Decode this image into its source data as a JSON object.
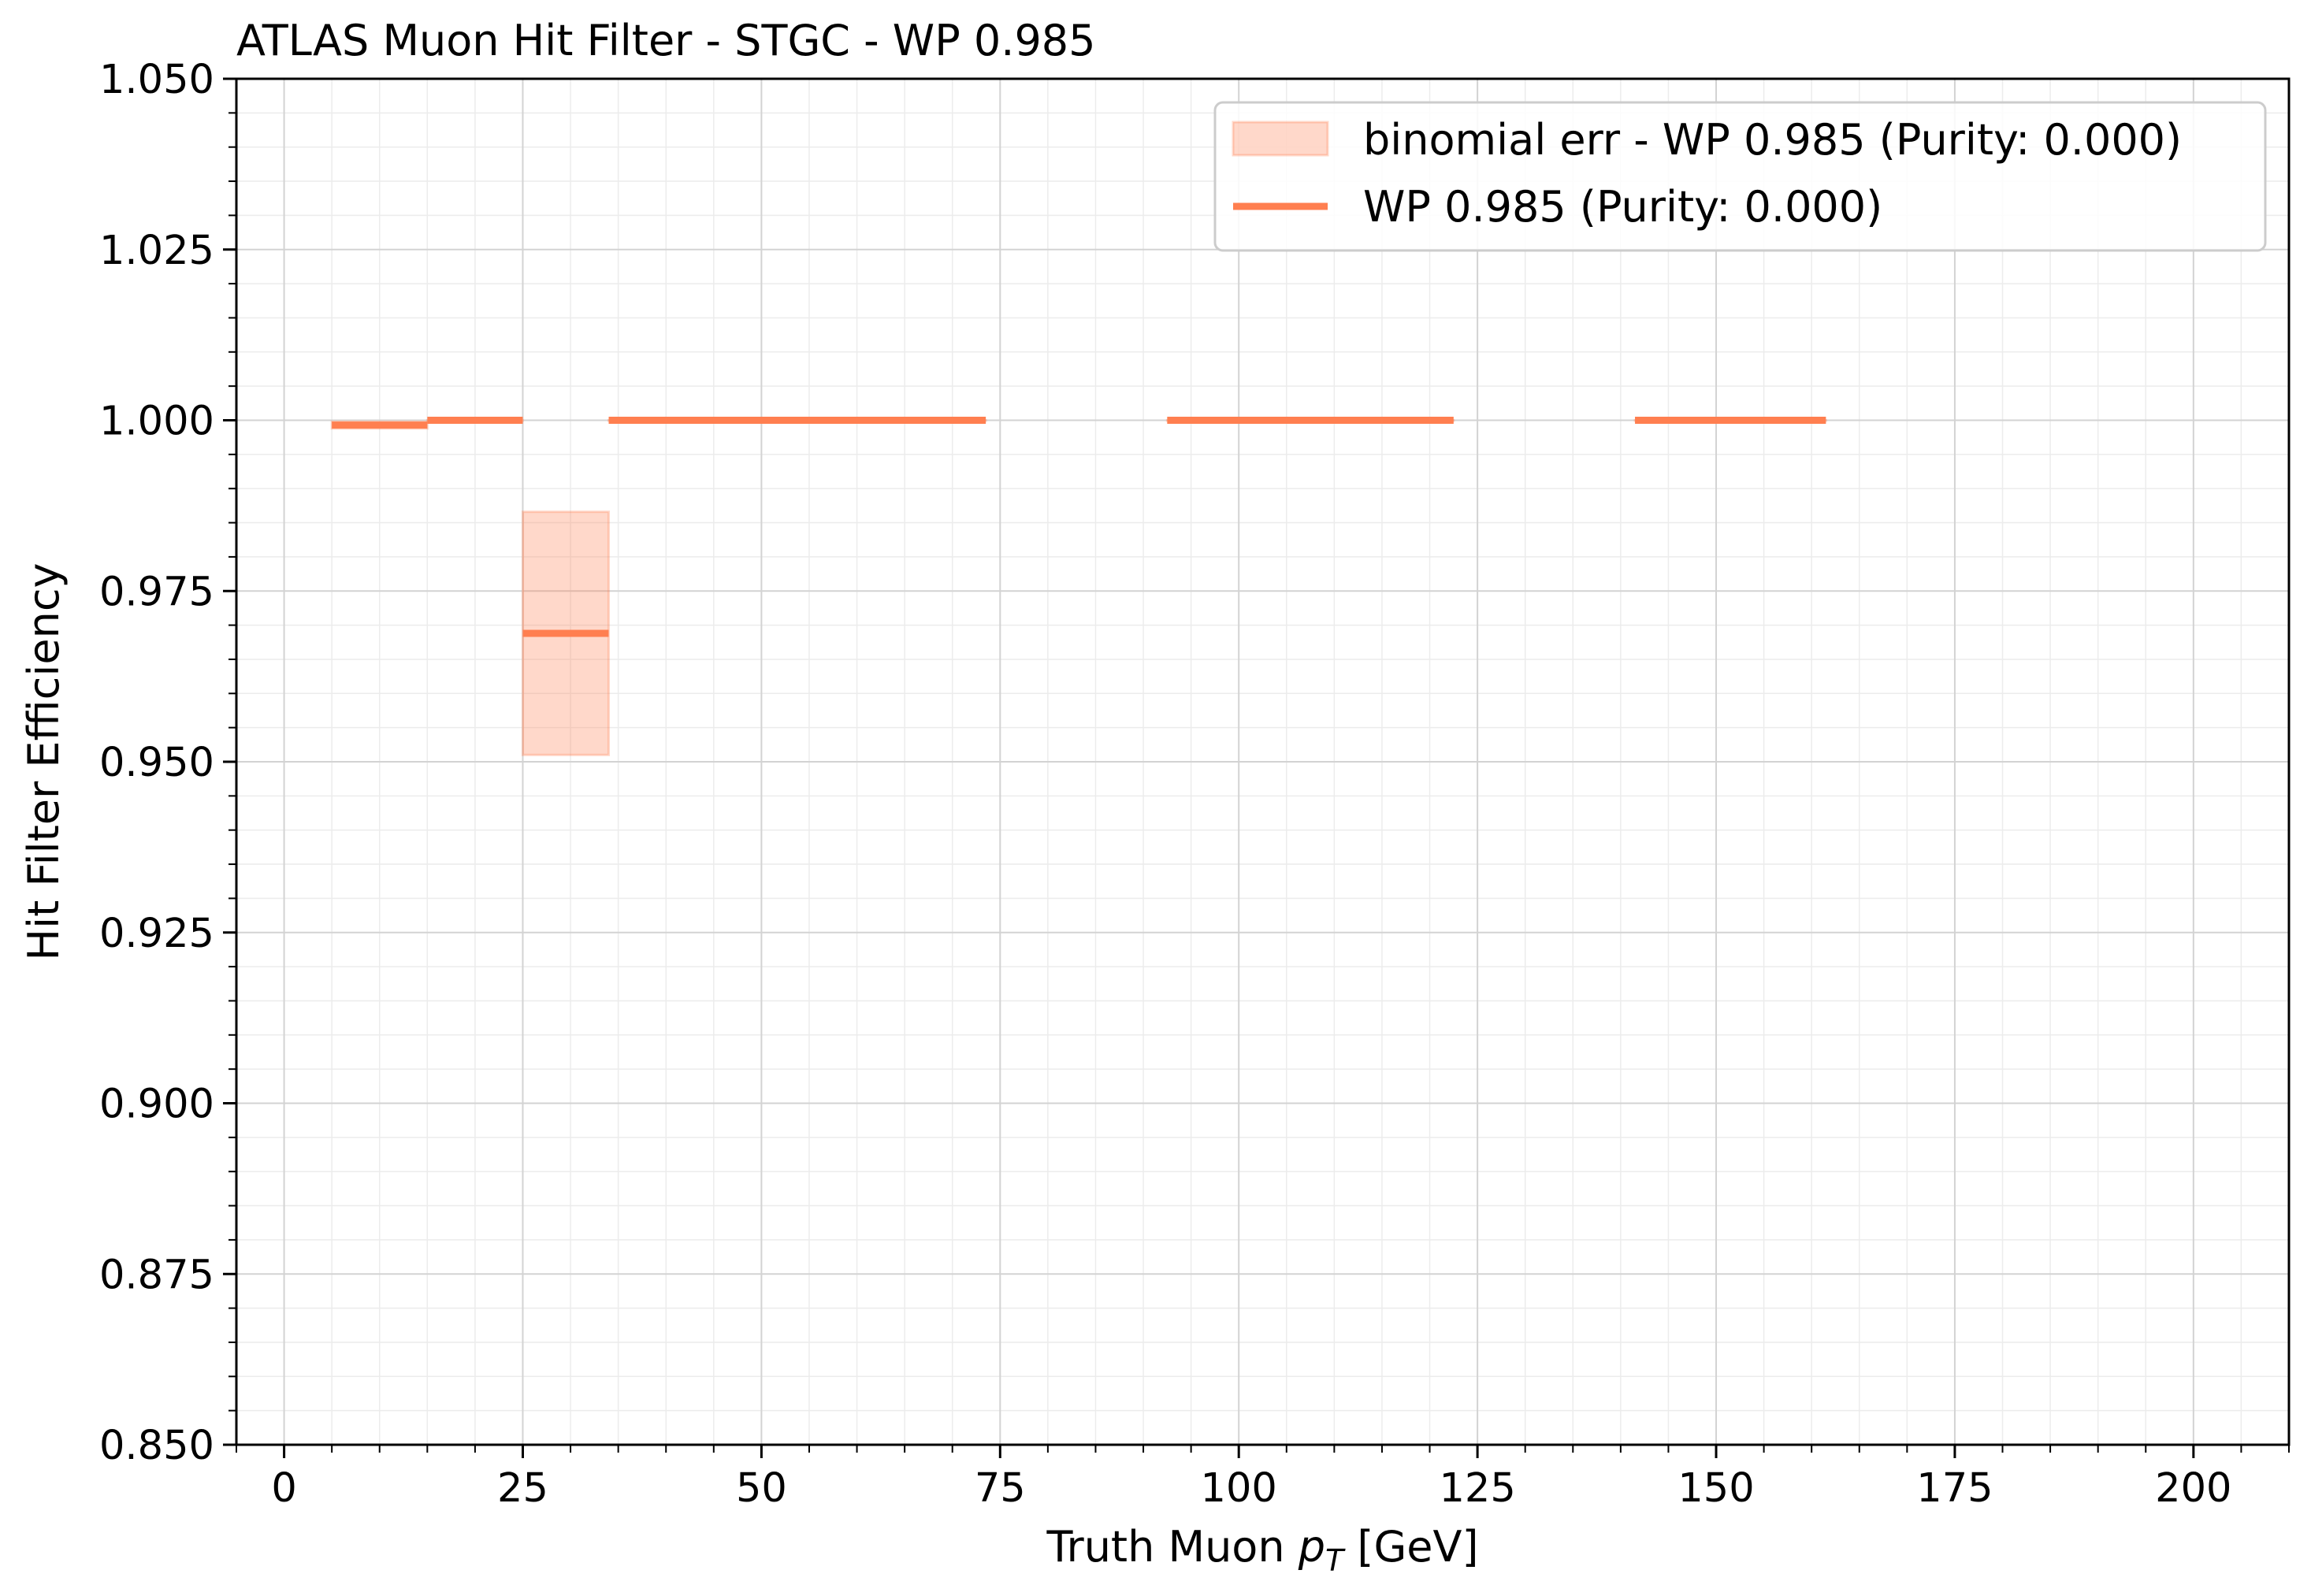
{
  "chart_data": {
    "type": "step",
    "title": "ATLAS Muon Hit Filter - STGC - WP 0.985",
    "xlabel_main": "Truth Muon ",
    "xlabel_math": "p",
    "xlabel_sub": "T",
    "xlabel_unit": " [GeV]",
    "ylabel": "Hit Filter Efficiency",
    "xlim": [
      -5,
      210
    ],
    "ylim": [
      0.85,
      1.05
    ],
    "x_ticks": [
      0,
      25,
      50,
      75,
      100,
      125,
      150,
      175,
      200
    ],
    "x_tick_labels": [
      "0",
      "25",
      "50",
      "75",
      "100",
      "125",
      "150",
      "175",
      "200"
    ],
    "y_ticks": [
      0.85,
      0.875,
      0.9,
      0.925,
      0.95,
      0.975,
      1.0,
      1.025,
      1.05
    ],
    "y_tick_labels": [
      "0.850",
      "0.875",
      "0.900",
      "0.925",
      "0.950",
      "0.975",
      "1.000",
      "1.025",
      "1.050"
    ],
    "grid": true,
    "minor_grid": true,
    "legend_position": "top-right",
    "color": "#ff7f50",
    "series": [
      {
        "name": "WP 0.985 (Purity: 0.000)",
        "bins": [
          {
            "x0": 5,
            "x1": 15,
            "y": 0.9993
          },
          {
            "x0": 15,
            "x1": 25,
            "y": 1.0
          },
          {
            "x0": 25,
            "x1": 34,
            "y": 0.9688
          },
          {
            "x0": 34,
            "x1": 73.5,
            "y": 1.0
          },
          {
            "x0": 92.5,
            "x1": 122.5,
            "y": 1.0
          },
          {
            "x0": 141.5,
            "x1": 161.5,
            "y": 1.0
          }
        ]
      }
    ],
    "error_band": {
      "name": "binomial err - WP 0.985 (Purity: 0.000)",
      "bins": [
        {
          "x0": 5,
          "x1": 15,
          "lo": 0.9988,
          "hi": 0.9998
        },
        {
          "x0": 15,
          "x1": 25,
          "lo": 1.0,
          "hi": 1.0
        },
        {
          "x0": 25,
          "x1": 34,
          "lo": 0.951,
          "hi": 0.9866
        },
        {
          "x0": 34,
          "x1": 73.5,
          "lo": 1.0,
          "hi": 1.0
        },
        {
          "x0": 92.5,
          "x1": 122.5,
          "lo": 1.0,
          "hi": 1.0
        },
        {
          "x0": 141.5,
          "x1": 161.5,
          "lo": 1.0,
          "hi": 1.0
        }
      ]
    }
  }
}
